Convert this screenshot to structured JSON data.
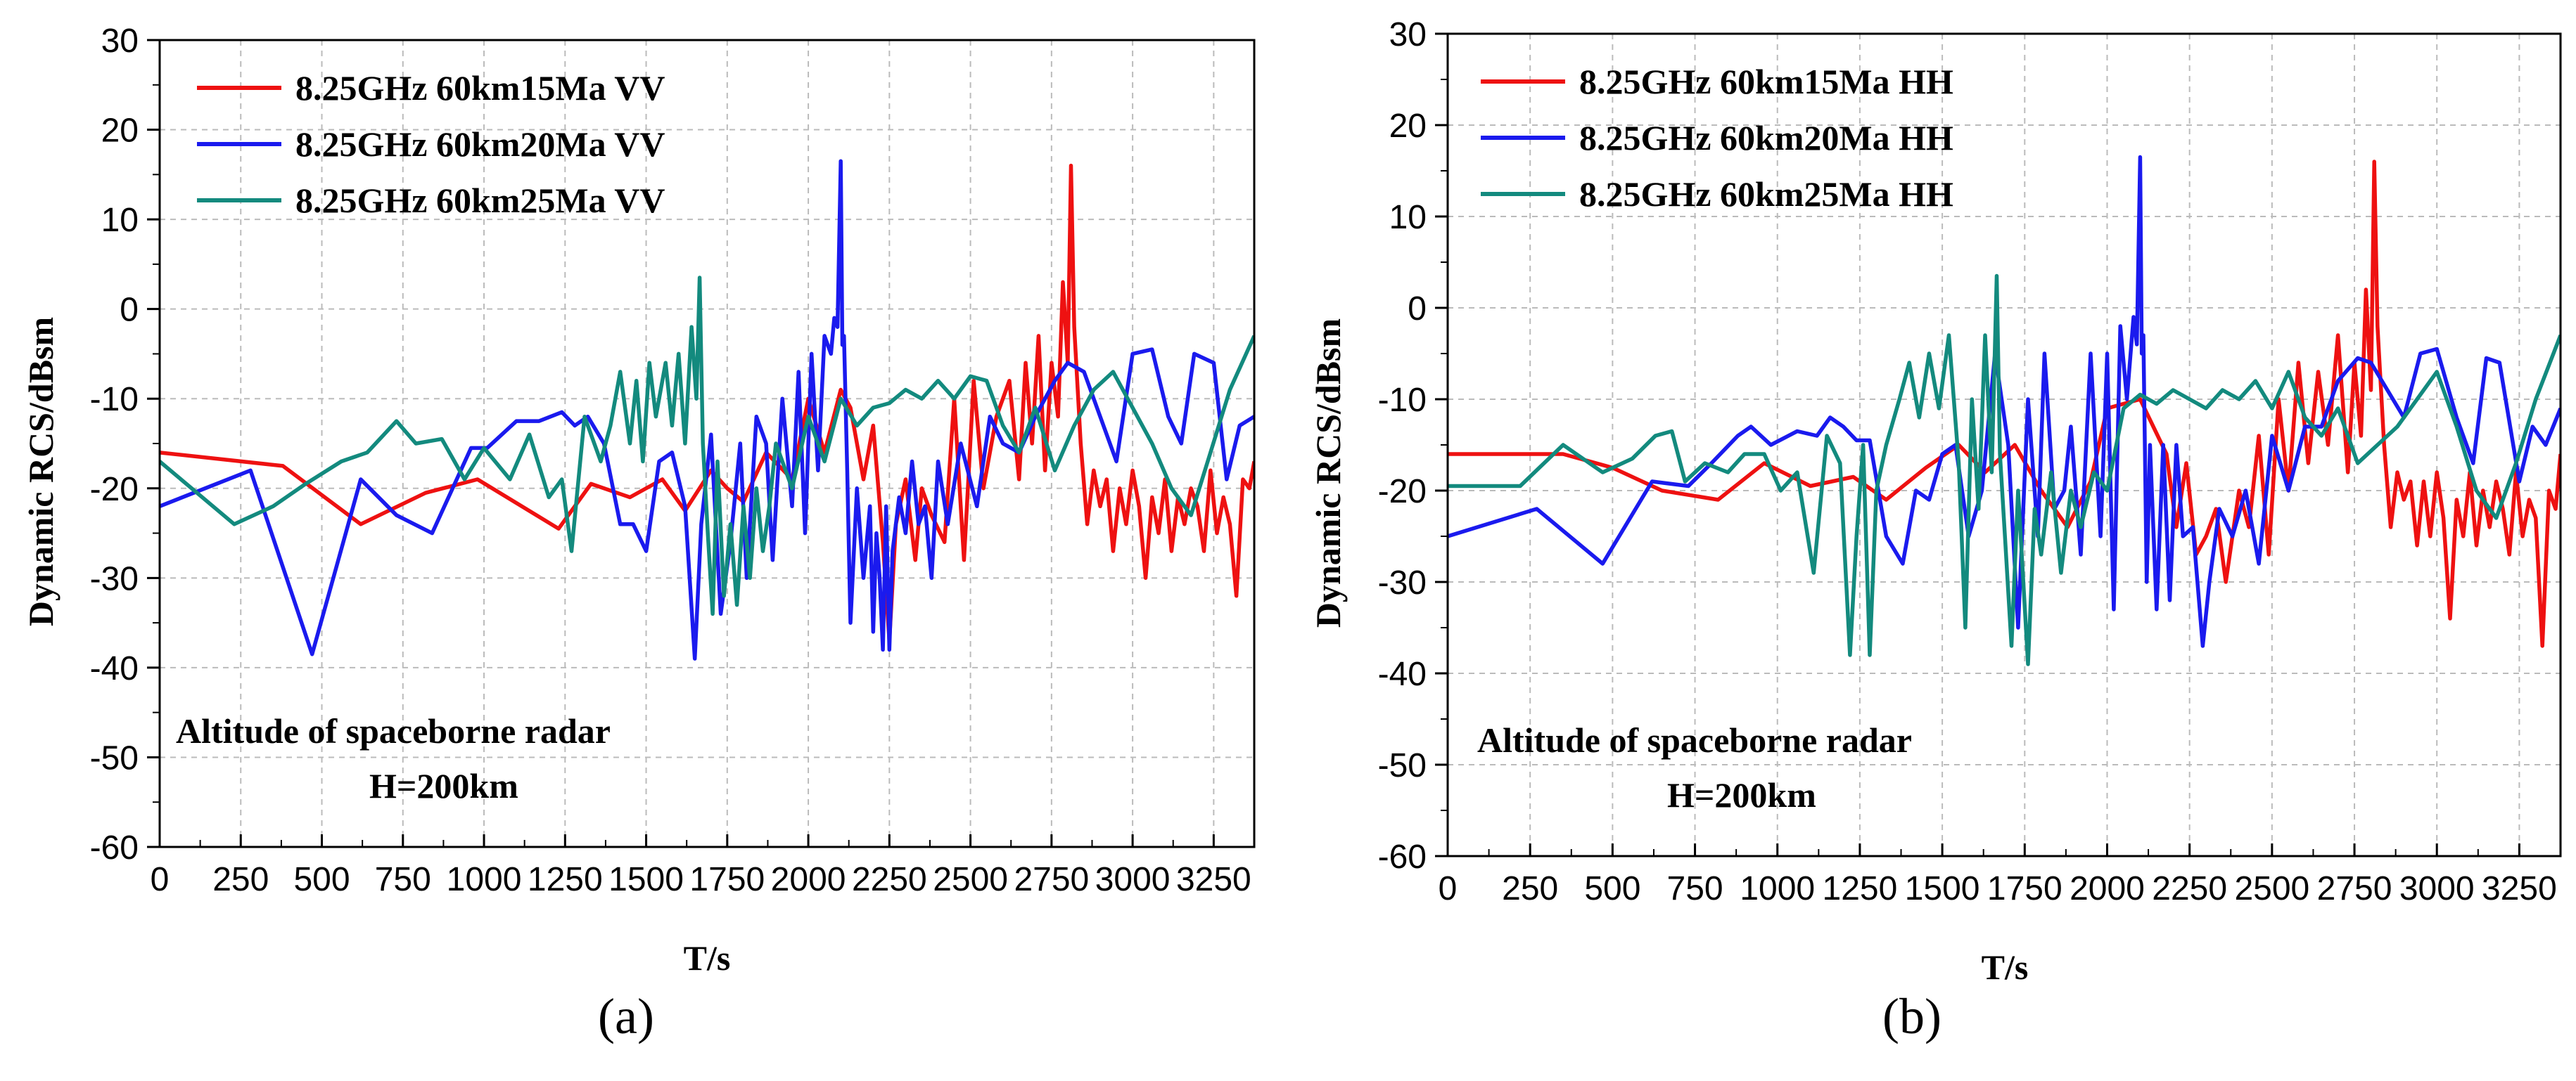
{
  "chart_data": [
    {
      "panel": "(a)",
      "type": "line",
      "xlabel": "T/s",
      "ylabel": "Dynamic RCS/dBsm",
      "xlim": [
        0,
        3375
      ],
      "ylim": [
        -60,
        30
      ],
      "xticks": [
        0,
        250,
        500,
        750,
        1000,
        1250,
        1500,
        1750,
        2000,
        2250,
        2500,
        2750,
        3000,
        3250
      ],
      "yticks": [
        -60,
        -50,
        -40,
        -30,
        -20,
        -10,
        0,
        10,
        20,
        30
      ],
      "grid": true,
      "legend_position": "top-left",
      "annotation": [
        "Altitude of spaceborne radar",
        "H=200km"
      ],
      "series": [
        {
          "name": "8.25GHz 60km15Ma VV",
          "color": "#ee1111",
          "x": [
            0,
            380,
            620,
            820,
            980,
            1230,
            1330,
            1450,
            1550,
            1620,
            1700,
            1750,
            1800,
            1870,
            1950,
            2000,
            2050,
            2100,
            2130,
            2170,
            2200,
            2230,
            2250,
            2270,
            2300,
            2330,
            2350,
            2380,
            2420,
            2450,
            2480,
            2510,
            2540,
            2580,
            2620,
            2650,
            2670,
            2690,
            2710,
            2730,
            2750,
            2770,
            2785,
            2800,
            2810,
            2820,
            2840,
            2860,
            2880,
            2900,
            2920,
            2940,
            2960,
            2980,
            3000,
            3020,
            3040,
            3060,
            3080,
            3100,
            3120,
            3140,
            3160,
            3180,
            3200,
            3220,
            3240,
            3260,
            3280,
            3300,
            3320,
            3340,
            3360,
            3375
          ],
          "y": [
            -16,
            -17.5,
            -24,
            -20.5,
            -19,
            -24.5,
            -19.5,
            -21,
            -19,
            -22.5,
            -18,
            -20,
            -21.5,
            -16,
            -19,
            -10,
            -16,
            -9,
            -11,
            -19,
            -13,
            -26,
            -37,
            -24,
            -19,
            -28,
            -20,
            -23,
            -26,
            -10,
            -28,
            -8,
            -20,
            -12,
            -8,
            -19,
            -6,
            -15,
            -3,
            -18,
            -6,
            -12,
            3,
            -6,
            16,
            -2,
            -15,
            -24,
            -18,
            -22,
            -19,
            -27,
            -20,
            -24,
            -18,
            -22,
            -30,
            -21,
            -25,
            -19,
            -27,
            -21,
            -24,
            -20,
            -22,
            -27,
            -18,
            -25,
            -21,
            -24,
            -32,
            -19,
            -20,
            -17
          ]
        },
        {
          "name": "8.25GHz 60km20Ma VV",
          "color": "#1a1aee",
          "x": [
            0,
            280,
            470,
            620,
            730,
            840,
            960,
            1010,
            1100,
            1170,
            1240,
            1280,
            1320,
            1370,
            1420,
            1460,
            1500,
            1540,
            1580,
            1620,
            1650,
            1670,
            1700,
            1730,
            1760,
            1790,
            1810,
            1840,
            1870,
            1890,
            1920,
            1950,
            1970,
            1990,
            2010,
            2030,
            2050,
            2070,
            2080,
            2090,
            2100,
            2105,
            2110,
            2120,
            2130,
            2150,
            2170,
            2190,
            2200,
            2210,
            2220,
            2230,
            2240,
            2250,
            2260,
            2280,
            2300,
            2320,
            2340,
            2360,
            2380,
            2400,
            2430,
            2470,
            2520,
            2560,
            2600,
            2650,
            2700,
            2760,
            2800,
            2850,
            2900,
            2950,
            3000,
            3060,
            3110,
            3150,
            3190,
            3250,
            3290,
            3330,
            3375
          ],
          "y": [
            -22,
            -18,
            -38.5,
            -19,
            -23,
            -25,
            -15.5,
            -15.5,
            -12.5,
            -12.5,
            -11.5,
            -13,
            -12,
            -15,
            -24,
            -24,
            -27,
            -17,
            -16,
            -22,
            -39,
            -24,
            -14,
            -34,
            -26,
            -15,
            -30,
            -12,
            -15,
            -28,
            -10,
            -22,
            -7,
            -25,
            -5,
            -18,
            -3,
            -5,
            -1,
            -2,
            16.5,
            -4,
            -3,
            -18,
            -35,
            -20,
            -30,
            -22,
            -36,
            -25,
            -30,
            -38,
            -22,
            -38,
            -27,
            -21,
            -25,
            -17,
            -24,
            -22,
            -30,
            -17,
            -24,
            -15,
            -22,
            -12,
            -15,
            -16,
            -12,
            -8,
            -6,
            -7,
            -12,
            -17,
            -5,
            -4.5,
            -12,
            -15,
            -5,
            -6,
            -19,
            -13,
            -12
          ]
        },
        {
          "name": "8.25GHz 60km25Ma VV",
          "color": "#138a7e",
          "x": [
            0,
            230,
            350,
            450,
            560,
            640,
            730,
            790,
            870,
            940,
            1000,
            1080,
            1140,
            1200,
            1240,
            1270,
            1310,
            1360,
            1390,
            1420,
            1450,
            1470,
            1490,
            1510,
            1530,
            1560,
            1580,
            1600,
            1620,
            1640,
            1655,
            1665,
            1675,
            1690,
            1705,
            1720,
            1740,
            1760,
            1780,
            1800,
            1820,
            1840,
            1860,
            1880,
            1900,
            1950,
            2000,
            2050,
            2100,
            2150,
            2200,
            2250,
            2300,
            2350,
            2400,
            2450,
            2500,
            2550,
            2600,
            2650,
            2700,
            2760,
            2820,
            2880,
            2940,
            3000,
            3060,
            3120,
            3180,
            3240,
            3300,
            3375
          ],
          "y": [
            -17,
            -24,
            -22,
            -19.5,
            -17,
            -16,
            -12.5,
            -15,
            -14.5,
            -19,
            -15.5,
            -19,
            -14,
            -21,
            -19,
            -27,
            -12,
            -17,
            -13,
            -7,
            -15,
            -8,
            -17,
            -6,
            -12,
            -6,
            -13,
            -5,
            -15,
            -2,
            -10,
            3.5,
            -15,
            -25,
            -34,
            -17,
            -32,
            -24,
            -33,
            -22,
            -30,
            -20,
            -27,
            -22,
            -15,
            -20,
            -12,
            -17,
            -10,
            -13,
            -11,
            -10.5,
            -9,
            -10,
            -8,
            -10,
            -7.5,
            -8,
            -13,
            -16,
            -11,
            -18,
            -13,
            -9,
            -7,
            -11,
            -15,
            -20,
            -23,
            -16,
            -9,
            -3
          ]
        }
      ]
    },
    {
      "panel": "(b)",
      "type": "line",
      "xlabel": "T/s",
      "ylabel": "Dynamic RCS/dBsm",
      "xlim": [
        0,
        3375
      ],
      "ylim": [
        -60,
        30
      ],
      "xticks": [
        0,
        250,
        500,
        750,
        1000,
        1250,
        1500,
        1750,
        2000,
        2250,
        2500,
        2750,
        3000,
        3250
      ],
      "yticks": [
        -60,
        -50,
        -40,
        -30,
        -20,
        -10,
        0,
        10,
        20,
        30
      ],
      "grid": true,
      "legend_position": "top-left",
      "annotation": [
        "Altitude of spaceborne radar",
        "H=200km"
      ],
      "series": [
        {
          "name": "8.25GHz 60km15Ma HH",
          "color": "#ee1111",
          "x": [
            0,
            200,
            350,
            500,
            650,
            820,
            960,
            1100,
            1230,
            1330,
            1450,
            1550,
            1630,
            1720,
            1800,
            1880,
            1950,
            2000,
            2050,
            2100,
            2140,
            2180,
            2210,
            2240,
            2270,
            2300,
            2330,
            2360,
            2400,
            2430,
            2460,
            2490,
            2520,
            2550,
            2580,
            2610,
            2640,
            2670,
            2700,
            2730,
            2750,
            2770,
            2785,
            2800,
            2810,
            2820,
            2840,
            2860,
            2880,
            2900,
            2920,
            2940,
            2960,
            2980,
            3000,
            3020,
            3040,
            3060,
            3080,
            3100,
            3120,
            3140,
            3160,
            3180,
            3200,
            3220,
            3240,
            3260,
            3280,
            3300,
            3320,
            3340,
            3360,
            3375
          ],
          "y": [
            -16,
            -16,
            -16,
            -17.5,
            -20,
            -21,
            -17,
            -19.5,
            -18.5,
            -21,
            -17.5,
            -15,
            -18,
            -15,
            -20,
            -24,
            -19,
            -11,
            -10.5,
            -10,
            -13,
            -16,
            -24,
            -17,
            -27,
            -25,
            -22,
            -30,
            -20,
            -24,
            -14,
            -27,
            -10,
            -20,
            -6,
            -17,
            -7,
            -15,
            -3,
            -18,
            -6,
            -14,
            2,
            -9,
            16,
            -2,
            -15,
            -24,
            -18,
            -21,
            -19,
            -26,
            -19,
            -25,
            -18,
            -23,
            -34,
            -21,
            -25,
            -18,
            -26,
            -20,
            -24,
            -19,
            -22,
            -27,
            -18,
            -25,
            -21,
            -23,
            -37,
            -20,
            -22,
            -16
          ]
        },
        {
          "name": "8.25GHz 60km20Ma HH",
          "color": "#1a1aee",
          "x": [
            0,
            270,
            470,
            620,
            730,
            800,
            880,
            920,
            980,
            1060,
            1120,
            1160,
            1200,
            1240,
            1280,
            1330,
            1380,
            1420,
            1460,
            1500,
            1540,
            1580,
            1620,
            1660,
            1700,
            1730,
            1760,
            1790,
            1810,
            1840,
            1870,
            1890,
            1920,
            1950,
            1980,
            2000,
            2020,
            2040,
            2060,
            2080,
            2090,
            2100,
            2105,
            2110,
            2120,
            2130,
            2150,
            2170,
            2190,
            2210,
            2230,
            2260,
            2290,
            2310,
            2340,
            2380,
            2420,
            2460,
            2500,
            2550,
            2600,
            2650,
            2700,
            2760,
            2800,
            2850,
            2900,
            2950,
            3000,
            3060,
            3110,
            3150,
            3190,
            3250,
            3290,
            3330,
            3375
          ],
          "y": [
            -25,
            -22,
            -28,
            -19,
            -19.5,
            -17,
            -14,
            -13,
            -15,
            -13.5,
            -14,
            -12,
            -13,
            -14.5,
            -14.5,
            -25,
            -28,
            -20,
            -21,
            -16,
            -15,
            -25,
            -20,
            -5,
            -15,
            -35,
            -10,
            -25,
            -5,
            -22,
            -20,
            -13,
            -27,
            -5,
            -25,
            -5,
            -33,
            -2,
            -10,
            -1,
            -4,
            16.5,
            -5,
            -3,
            -30,
            -15,
            -33,
            -15,
            -32,
            -15,
            -25,
            -24,
            -37,
            -30,
            -22,
            -25,
            -20,
            -28,
            -14,
            -20,
            -13,
            -13,
            -8,
            -5.5,
            -6,
            -9,
            -12,
            -5,
            -4.5,
            -12,
            -17,
            -5.5,
            -6,
            -19,
            -13,
            -15,
            -11
          ]
        },
        {
          "name": "8.25GHz 60km25Ma HH",
          "color": "#138a7e",
          "x": [
            0,
            220,
            350,
            470,
            560,
            630,
            680,
            720,
            780,
            850,
            900,
            960,
            1010,
            1060,
            1110,
            1150,
            1190,
            1220,
            1240,
            1260,
            1280,
            1300,
            1330,
            1370,
            1400,
            1430,
            1460,
            1490,
            1520,
            1550,
            1570,
            1590,
            1610,
            1630,
            1650,
            1665,
            1675,
            1690,
            1710,
            1730,
            1760,
            1780,
            1800,
            1830,
            1860,
            1890,
            1920,
            1960,
            2000,
            2050,
            2100,
            2150,
            2200,
            2250,
            2300,
            2350,
            2400,
            2450,
            2500,
            2550,
            2600,
            2650,
            2700,
            2760,
            2820,
            2880,
            2940,
            3000,
            3060,
            3120,
            3180,
            3240,
            3300,
            3375
          ],
          "y": [
            -19.5,
            -19.5,
            -15,
            -18,
            -16.5,
            -14,
            -13.5,
            -19,
            -17,
            -18,
            -16,
            -16,
            -20,
            -18,
            -29,
            -14,
            -17,
            -38,
            -25,
            -15,
            -38,
            -20,
            -15,
            -10,
            -6,
            -12,
            -5,
            -11,
            -3,
            -17,
            -35,
            -10,
            -22,
            -3,
            -18,
            3.5,
            -16,
            -25,
            -37,
            -20,
            -39,
            -22,
            -27,
            -18,
            -29,
            -20,
            -24,
            -18,
            -20,
            -11,
            -9.5,
            -10.5,
            -9,
            -10,
            -11,
            -9,
            -10,
            -8,
            -11,
            -7,
            -12,
            -14,
            -11,
            -17,
            -15,
            -13,
            -10,
            -7,
            -13,
            -20,
            -23,
            -17,
            -10,
            -3
          ]
        }
      ]
    }
  ]
}
